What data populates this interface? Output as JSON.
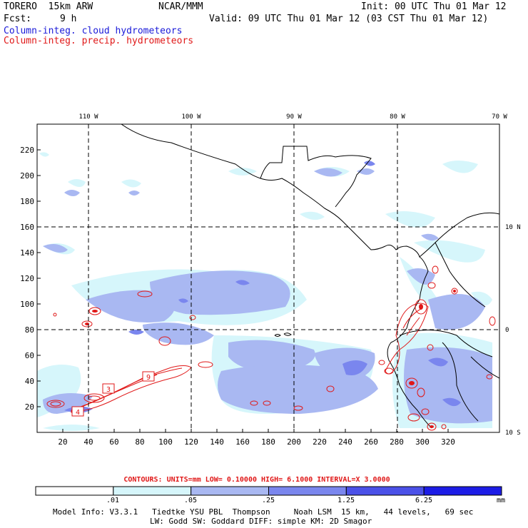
{
  "header": {
    "model": "TORERO  15km ARW",
    "center": "NCAR/MMM",
    "init": "Init: 00 UTC Thu 01 Mar 12",
    "fcst_label": "Fcst:",
    "fcst_value": "9 h",
    "valid": "Valid: 09 UTC Thu 01 Mar 12 (03 CST Thu 01 Mar 12)",
    "field_cloud": "Column-integ. cloud hydrometeors",
    "field_precip": "Column-integ. precip. hydrometeors"
  },
  "map": {
    "lon_labels": [
      "110 W",
      "100 W",
      "90 W",
      "80 W",
      "70 W"
    ],
    "lat_labels": [
      "10 N",
      "0",
      "10 S"
    ],
    "x_ticks": [
      "20",
      "40",
      "60",
      "80",
      "100",
      "120",
      "140",
      "160",
      "180",
      "200",
      "220",
      "240",
      "260",
      "280",
      "300",
      "320"
    ],
    "y_ticks": [
      "20",
      "40",
      "60",
      "80",
      "100",
      "120",
      "140",
      "160",
      "180",
      "200",
      "220"
    ],
    "contour_labels": [
      "4",
      "3",
      "9"
    ]
  },
  "contours_info": {
    "text": "CONTOURS:  UNITS=mm  LOW= 0.10000     HIGH=  6.1000     INTERVAL=X  3.0000"
  },
  "colorbar": {
    "labels": [
      ".01",
      ".05",
      ".25",
      "1.25",
      "6.25"
    ],
    "unit": "mm",
    "colors": [
      "#ffffff",
      "#d6f6fb",
      "#a9b8f2",
      "#7a86ee",
      "#4b51e8",
      "#1c1ce6"
    ]
  },
  "footer": {
    "line1": "Model Info: V3.3.1   Tiedtke YSU PBL  Thompson     Noah LSM  15 km,   44 levels,   69 sec",
    "line2": "LW: Godd SW: Goddard DIFF: simple KM: 2D Smagor"
  },
  "colors": {
    "cloud_light": "#d6f6fb",
    "cloud_mid": "#a9b8f2",
    "cloud_dark": "#7a86ee",
    "cloud_darker": "#4b51e8",
    "precip": "#e01818",
    "title_blue": "#1a1ad9"
  }
}
